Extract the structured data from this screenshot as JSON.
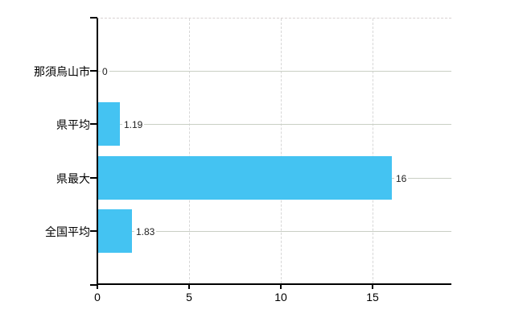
{
  "chart_data": {
    "type": "bar",
    "orientation": "horizontal",
    "title": "",
    "xlabel": "",
    "ylabel": "",
    "categories": [
      "那須烏山市",
      "県平均",
      "県最大",
      "全国平均"
    ],
    "values": [
      0,
      1.19,
      16,
      1.83
    ],
    "value_labels": [
      "0",
      "1.19",
      "16",
      "1.83"
    ],
    "x_ticks": [
      0,
      5,
      10,
      15
    ],
    "x_tick_labels": [
      "0",
      "5",
      "10",
      "15"
    ],
    "xlim": [
      0,
      19.25
    ],
    "legend_position": "none",
    "grid": {
      "vertical_gridlines": "dashed",
      "category_lines": "solid",
      "top_border": "dashed"
    }
  },
  "colors": {
    "background": "#ffffff",
    "bar": "#44c3f2",
    "axis": "#000000",
    "category_line": "#c9cfc4",
    "dashed_grid": "#d7d7d7",
    "value_text": "#222222",
    "label_text": "#000000"
  }
}
